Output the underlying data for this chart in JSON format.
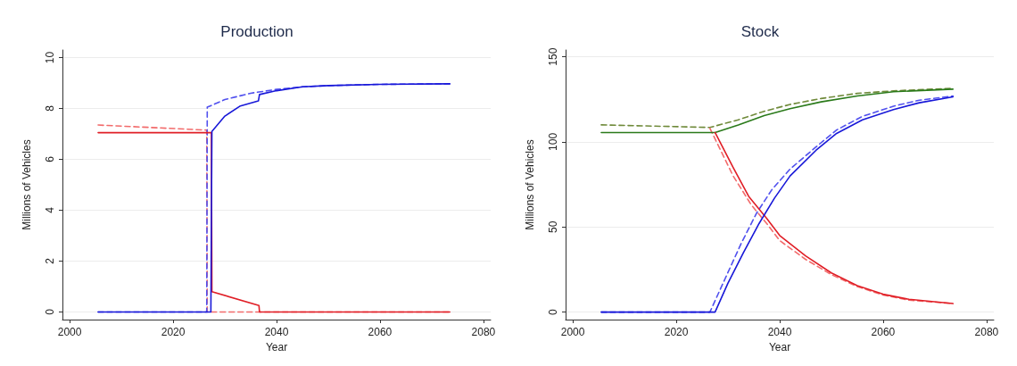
{
  "chart_data": [
    {
      "type": "line",
      "title": "Production",
      "xlabel": "Year",
      "ylabel": "Millions of Vehicles",
      "xlim": [
        1998.6,
        2081.4
      ],
      "xticks": [
        2000,
        2020,
        2040,
        2060,
        2080
      ],
      "ylim": [
        -0.3,
        10.3
      ],
      "yticks": [
        0,
        2,
        4,
        6,
        8,
        10
      ],
      "grid": "y",
      "series": [
        {
          "color": "#f26b6b",
          "line_style": "dashed",
          "x": [
            2005.5,
            2026.5,
            2026.6,
            2073.5
          ],
          "values": [
            7.35,
            7.15,
            0,
            0
          ]
        },
        {
          "color": "#5050ee",
          "line_style": "dashed",
          "x": [
            2005.5,
            2026.5,
            2026.6,
            2030,
            2035,
            2040,
            2045,
            2050,
            2060,
            2073.5
          ],
          "values": [
            0,
            0,
            8.05,
            8.35,
            8.6,
            8.75,
            8.85,
            8.9,
            8.95,
            8.97
          ]
        },
        {
          "color": "#e01e26",
          "line_style": "solid",
          "x": [
            2005.5,
            2027.4,
            2027.5,
            2036.6,
            2036.7,
            2073.5
          ],
          "values": [
            7.05,
            7.05,
            0.8,
            0.25,
            0,
            0
          ]
        },
        {
          "color": "#1818d8",
          "line_style": "solid",
          "x": [
            2005.5,
            2027.3,
            2027.5,
            2030,
            2033,
            2036.5,
            2036.7,
            2040,
            2045,
            2050,
            2060,
            2073.5
          ],
          "values": [
            0,
            0,
            7.1,
            7.7,
            8.1,
            8.3,
            8.55,
            8.7,
            8.85,
            8.9,
            8.95,
            8.97
          ]
        }
      ]
    },
    {
      "type": "line",
      "title": "Stock",
      "xlabel": "Year",
      "ylabel": "Millions of Vehicles",
      "xlim": [
        1998.6,
        2081.4
      ],
      "xticks": [
        2000,
        2020,
        2040,
        2060,
        2080
      ],
      "ylim": [
        -4.4,
        154
      ],
      "yticks": [
        0,
        50,
        100,
        150
      ],
      "grid": "y",
      "series": [
        {
          "color": "#6f8a3a",
          "line_style": "dashed",
          "x": [
            2005.5,
            2026.5,
            2032,
            2037,
            2042,
            2048,
            2055,
            2062,
            2073.5
          ],
          "values": [
            110,
            108.5,
            113,
            118,
            122,
            125.5,
            128.5,
            130,
            131.5
          ]
        },
        {
          "color": "#f26b6b",
          "line_style": "dashed",
          "x": [
            2026.5,
            2031,
            2034.5,
            2037.5,
            2040,
            2045,
            2050,
            2055,
            2060,
            2065,
            2073.5
          ],
          "values": [
            108,
            80,
            63,
            52,
            42,
            31,
            22,
            15,
            10,
            7,
            5
          ]
        },
        {
          "color": "#5050ee",
          "line_style": "dashed",
          "x": [
            2005.5,
            2026.5,
            2029.5,
            2032.5,
            2035.5,
            2038.5,
            2042,
            2047,
            2051,
            2056,
            2062,
            2067,
            2073.5
          ],
          "values": [
            0,
            0,
            20,
            40,
            58,
            72,
            84,
            97,
            107,
            115,
            121,
            124.5,
            127
          ]
        },
        {
          "color": "#2a7a1a",
          "line_style": "solid",
          "x": [
            2005.5,
            2027.5,
            2032,
            2037,
            2042,
            2048,
            2055,
            2062,
            2073.5
          ],
          "values": [
            105.5,
            105.5,
            110,
            115.5,
            119.5,
            123.5,
            127,
            129.5,
            131
          ]
        },
        {
          "color": "#e01e26",
          "line_style": "solid",
          "x": [
            2027.5,
            2031,
            2034,
            2037.5,
            2040,
            2045,
            2050,
            2055,
            2060,
            2065,
            2073.5
          ],
          "values": [
            105.5,
            85,
            68,
            55,
            45,
            33,
            23,
            15.5,
            10.5,
            7.5,
            5
          ]
        },
        {
          "color": "#1818d8",
          "line_style": "solid",
          "x": [
            2005.5,
            2027.5,
            2030,
            2033,
            2036,
            2039,
            2042,
            2047,
            2051,
            2056,
            2062,
            2067,
            2073.5
          ],
          "values": [
            0,
            0,
            17,
            35,
            52,
            67,
            80,
            95,
            105,
            113,
            119,
            123,
            126.5
          ]
        }
      ]
    }
  ]
}
